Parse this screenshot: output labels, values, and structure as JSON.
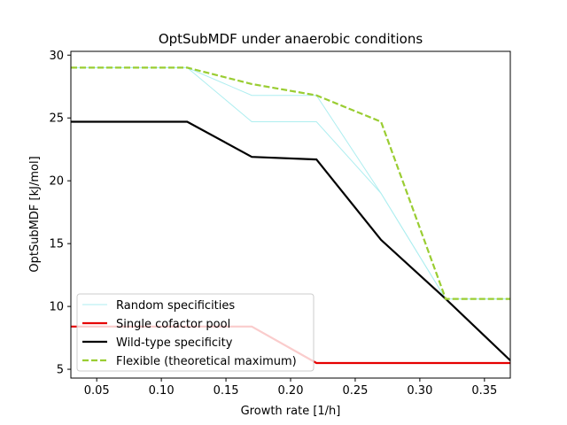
{
  "chart_data": {
    "type": "line",
    "title": "OptSubMDF under anaerobic conditions",
    "xlabel": "Growth rate [1/h]",
    "ylabel": "OptSubMDF [kJ/mol]",
    "xlim": [
      0.03,
      0.37
    ],
    "ylim": [
      4.3,
      30.3
    ],
    "xticks": [
      0.05,
      0.1,
      0.15,
      0.2,
      0.25,
      0.3,
      0.35
    ],
    "xtick_labels": [
      "0.05",
      "0.10",
      "0.15",
      "0.20",
      "0.25",
      "0.30",
      "0.35"
    ],
    "yticks": [
      5,
      10,
      15,
      20,
      25,
      30
    ],
    "ytick_labels": [
      "5",
      "10",
      "15",
      "20",
      "25",
      "30"
    ],
    "grid": false,
    "legend_position": "lower-left",
    "random_series": [
      {
        "x": [
          0.03,
          0.12,
          0.17,
          0.22,
          0.27,
          0.32,
          0.37
        ],
        "y": [
          29.0,
          29.0,
          26.8,
          26.8,
          19.0,
          10.6,
          10.6
        ]
      },
      {
        "x": [
          0.03,
          0.12,
          0.17,
          0.22,
          0.27,
          0.32,
          0.37
        ],
        "y": [
          29.0,
          29.0,
          24.7,
          24.7,
          19.0,
          10.6,
          10.6
        ]
      }
    ],
    "series": [
      {
        "name": "Random specificities",
        "style": "thin-solid",
        "color": "#aeeef0",
        "x": [
          0.03,
          0.12,
          0.17,
          0.22,
          0.27,
          0.32,
          0.37
        ],
        "y": [
          29.0,
          29.0,
          26.8,
          26.8,
          19.0,
          10.6,
          10.6
        ]
      },
      {
        "name": "Single cofactor pool",
        "style": "solid",
        "color": "#e60000",
        "x": [
          0.03,
          0.12,
          0.17,
          0.22,
          0.27,
          0.32,
          0.37
        ],
        "y": [
          8.4,
          8.4,
          8.4,
          5.5,
          5.5,
          5.5,
          5.5
        ]
      },
      {
        "name": "Wild-type specificity",
        "style": "solid",
        "color": "#000000",
        "x": [
          0.03,
          0.12,
          0.17,
          0.22,
          0.27,
          0.32,
          0.37
        ],
        "y": [
          24.7,
          24.7,
          21.9,
          21.7,
          15.3,
          10.6,
          5.7
        ]
      },
      {
        "name": "Flexible (theoretical maximum)",
        "style": "dashed",
        "color": "#9acd32",
        "x": [
          0.03,
          0.12,
          0.17,
          0.22,
          0.27,
          0.32,
          0.37
        ],
        "y": [
          29.0,
          29.0,
          27.7,
          26.8,
          24.7,
          10.6,
          10.6
        ]
      }
    ]
  }
}
